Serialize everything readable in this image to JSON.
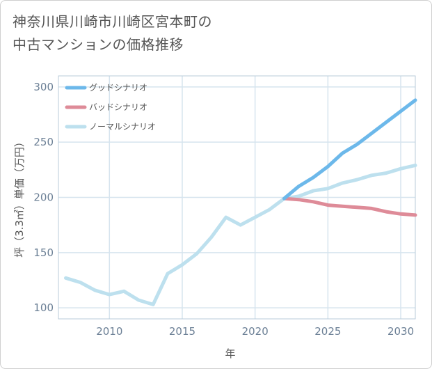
{
  "title_lines": [
    "神奈川県川崎市川崎区宮本町の",
    "中古マンションの価格推移"
  ],
  "chart_data": {
    "type": "line",
    "title": "神奈川県川崎市川崎区宮本町の中古マンションの価格推移",
    "xlabel": "年",
    "ylabel": "坪（3.3㎡）単価（万円）",
    "xlim": [
      2006.5,
      2031
    ],
    "ylim": [
      90,
      310
    ],
    "x_ticks": [
      2010,
      2015,
      2020,
      2025,
      2030
    ],
    "y_ticks": [
      100,
      150,
      200,
      250,
      300
    ],
    "legend_position": "top-left",
    "series": [
      {
        "name": "グッドシナリオ",
        "color": "#6cb8ea",
        "width": 5,
        "x": [
          2022,
          2023,
          2024,
          2025,
          2026,
          2027,
          2028,
          2029,
          2030,
          2031
        ],
        "values": [
          199,
          210,
          218,
          228,
          240,
          248,
          258,
          268,
          278,
          288
        ]
      },
      {
        "name": "バッドシナリオ",
        "color": "#de8b98",
        "width": 5,
        "x": [
          2022,
          2023,
          2024,
          2025,
          2026,
          2027,
          2028,
          2029,
          2030,
          2031
        ],
        "values": [
          199,
          198,
          196,
          193,
          192,
          191,
          190,
          187,
          185,
          184
        ]
      },
      {
        "name": "ノーマルシナリオ",
        "color": "#bde0ee",
        "width": 5,
        "x": [
          2007,
          2008,
          2009,
          2010,
          2011,
          2012,
          2013,
          2014,
          2015,
          2016,
          2017,
          2018,
          2019,
          2020,
          2021,
          2022,
          2023,
          2024,
          2025,
          2026,
          2027,
          2028,
          2029,
          2030,
          2031
        ],
        "values": [
          127,
          123,
          116,
          112,
          115,
          107,
          103,
          131,
          139,
          149,
          164,
          182,
          175,
          182,
          189,
          199,
          201,
          206,
          208,
          213,
          216,
          220,
          222,
          226,
          229
        ]
      }
    ]
  }
}
